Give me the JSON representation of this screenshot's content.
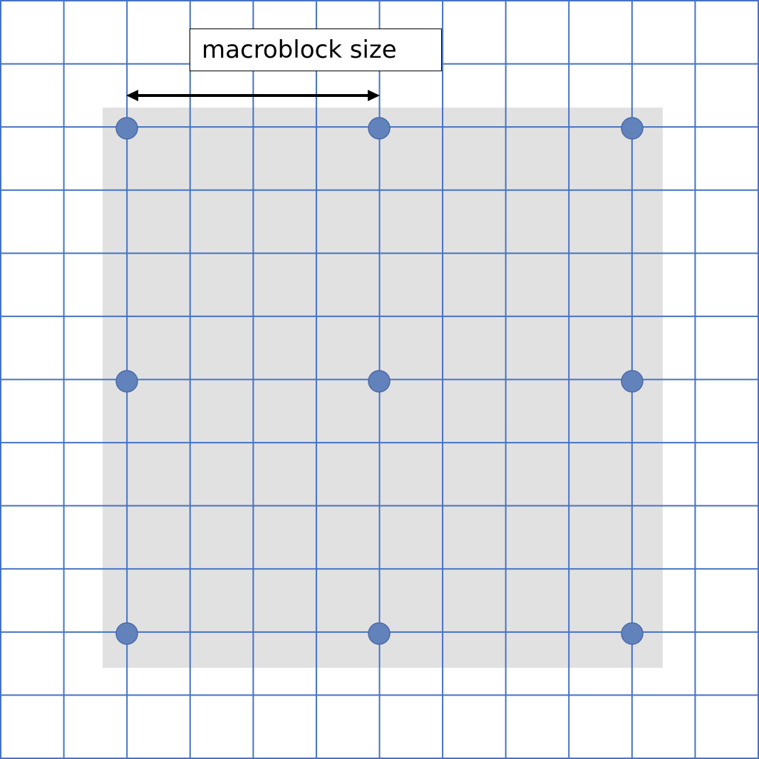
{
  "label": "macroblock size",
  "colors": {
    "grid_line": "#4472c4",
    "region_fill": "#e2e1e2",
    "point_fill": "#6282bb",
    "point_stroke": "#4a6aa8",
    "arrow": "#000000"
  }
}
